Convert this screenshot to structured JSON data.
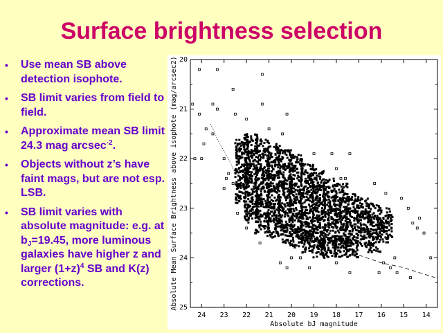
{
  "slide": {
    "title": "Surface brightness selection",
    "bullets": [
      {
        "parts": [
          {
            "t": "Use mean SB above detection isophote."
          }
        ]
      },
      {
        "parts": [
          {
            "t": "SB limit varies from field to field."
          }
        ]
      },
      {
        "parts": [
          {
            "t": "Approximate mean SB limit 24.3 mag arcsec"
          },
          {
            "t": "-2",
            "sup": true
          },
          {
            "t": "."
          }
        ]
      },
      {
        "parts": [
          {
            "t": "Objects without z’s  have faint mags, but  are not esp. LSB."
          }
        ]
      },
      {
        "parts": [
          {
            "t": "SB limit varies with absolute magnitude: e.g. at b"
          },
          {
            "t": "J",
            "sub": true
          },
          {
            "t": "=19.45, more luminous galaxies have higher z and larger (1+z)"
          },
          {
            "t": "4",
            "sup": true
          },
          {
            "t": " SB and K(z) corrections."
          }
        ]
      }
    ],
    "bullet_glyph": "•",
    "colors": {
      "background": "#ffffc0",
      "title": "#cc0066",
      "text": "#6600cc"
    }
  },
  "chart_data": {
    "type": "scatter",
    "xlabel": "Absolute bJ magnitude",
    "ylabel": "Absolute Mean Surface Brightness above isophote (mag/arcsec2)",
    "xlim": [
      24.5,
      13.5
    ],
    "ylim": [
      20,
      25
    ],
    "x_reversed": true,
    "y_reversed": true,
    "xticks": [
      "24",
      "23",
      "22",
      "21",
      "20",
      "19",
      "18",
      "17",
      "16",
      "15",
      "14"
    ],
    "yticks": [
      "20",
      "21",
      "22",
      "23",
      "24",
      "25"
    ],
    "grid": false,
    "marker": "square",
    "core_points": [
      [
        22.2,
        21.8
      ],
      [
        22.2,
        22.1
      ],
      [
        22.2,
        22.4
      ],
      [
        22.2,
        22.7
      ],
      [
        21.8,
        21.7
      ],
      [
        21.8,
        22.0
      ],
      [
        21.8,
        22.3
      ],
      [
        21.8,
        22.6
      ],
      [
        21.8,
        22.9
      ],
      [
        21.8,
        23.1
      ],
      [
        21.3,
        21.8
      ],
      [
        21.3,
        22.1
      ],
      [
        21.3,
        22.4
      ],
      [
        21.3,
        22.7
      ],
      [
        21.3,
        23.0
      ],
      [
        21.3,
        23.3
      ],
      [
        20.8,
        21.9
      ],
      [
        20.8,
        22.2
      ],
      [
        20.8,
        22.5
      ],
      [
        20.8,
        22.8
      ],
      [
        20.8,
        23.1
      ],
      [
        20.8,
        23.4
      ],
      [
        20.3,
        22.0
      ],
      [
        20.3,
        22.3
      ],
      [
        20.3,
        22.6
      ],
      [
        20.3,
        22.9
      ],
      [
        20.3,
        23.2
      ],
      [
        20.3,
        23.5
      ],
      [
        19.8,
        22.1
      ],
      [
        19.8,
        22.4
      ],
      [
        19.8,
        22.7
      ],
      [
        19.8,
        23.0
      ],
      [
        19.8,
        23.3
      ],
      [
        19.8,
        23.6
      ],
      [
        19.3,
        22.3
      ],
      [
        19.3,
        22.6
      ],
      [
        19.3,
        22.9
      ],
      [
        19.3,
        23.2
      ],
      [
        19.3,
        23.5
      ],
      [
        19.3,
        23.7
      ],
      [
        18.8,
        22.4
      ],
      [
        18.8,
        22.7
      ],
      [
        18.8,
        23.0
      ],
      [
        18.8,
        23.3
      ],
      [
        18.8,
        23.6
      ],
      [
        18.8,
        23.8
      ],
      [
        18.3,
        22.6
      ],
      [
        18.3,
        22.9
      ],
      [
        18.3,
        23.2
      ],
      [
        18.3,
        23.5
      ],
      [
        18.3,
        23.8
      ],
      [
        17.8,
        22.7
      ],
      [
        17.8,
        23.0
      ],
      [
        17.8,
        23.3
      ],
      [
        17.8,
        23.6
      ],
      [
        17.8,
        23.8
      ],
      [
        17.3,
        22.9
      ],
      [
        17.3,
        23.2
      ],
      [
        17.3,
        23.5
      ],
      [
        17.3,
        23.8
      ],
      [
        16.8,
        23.0
      ],
      [
        16.8,
        23.3
      ],
      [
        16.8,
        23.6
      ],
      [
        16.3,
        23.1
      ],
      [
        16.3,
        23.4
      ],
      [
        16.3,
        23.7
      ],
      [
        15.8,
        23.2
      ],
      [
        15.8,
        23.5
      ]
    ],
    "points": [
      [
        24.1,
        20.2
      ],
      [
        23.3,
        20.2
      ],
      [
        21.3,
        20.3
      ],
      [
        22.6,
        20.6
      ],
      [
        24.4,
        20.9
      ],
      [
        23.5,
        20.9
      ],
      [
        23.3,
        21.0
      ],
      [
        21.3,
        20.9
      ],
      [
        24.1,
        21.1
      ],
      [
        22.5,
        21.1
      ],
      [
        20.2,
        21.1
      ],
      [
        22.0,
        21.2
      ],
      [
        21.0,
        21.4
      ],
      [
        20.4,
        21.5
      ],
      [
        23.8,
        21.4
      ],
      [
        23.5,
        21.5
      ],
      [
        23.9,
        21.7
      ],
      [
        23.0,
        22.0
      ],
      [
        24.3,
        22.0
      ],
      [
        24.0,
        22.0
      ],
      [
        19.0,
        21.9
      ],
      [
        18.2,
        21.9
      ],
      [
        17.4,
        21.9
      ],
      [
        18.0,
        22.2
      ],
      [
        17.8,
        22.4
      ],
      [
        17.6,
        22.4
      ],
      [
        16.3,
        22.5
      ],
      [
        15.8,
        22.7
      ],
      [
        15.1,
        22.8
      ],
      [
        14.8,
        23.0
      ],
      [
        14.3,
        23.2
      ],
      [
        14.6,
        23.3
      ],
      [
        14.1,
        23.5
      ],
      [
        14.4,
        23.4
      ],
      [
        13.8,
        24.0
      ],
      [
        15.4,
        24.0
      ],
      [
        15.6,
        24.2
      ],
      [
        15.9,
        24.1
      ],
      [
        16.1,
        24.3
      ],
      [
        15.3,
        24.3
      ],
      [
        14.7,
        24.4
      ],
      [
        17.4,
        24.3
      ],
      [
        18.0,
        24.1
      ],
      [
        19.2,
        24.2
      ],
      [
        19.6,
        24.0
      ],
      [
        20.0,
        24.0
      ],
      [
        20.5,
        24.1
      ],
      [
        20.2,
        24.2
      ],
      [
        21.4,
        23.7
      ],
      [
        21.6,
        23.5
      ],
      [
        22.0,
        23.4
      ],
      [
        22.4,
        23.1
      ],
      [
        22.6,
        22.5
      ],
      [
        22.9,
        22.4
      ],
      [
        23.0,
        22.6
      ],
      [
        22.8,
        22.3
      ]
    ],
    "limit_lines": [
      {
        "style": "dotted",
        "points": [
          [
            23.6,
            21.3
          ],
          [
            23.2,
            21.7
          ],
          [
            22.8,
            22.0
          ],
          [
            22.5,
            22.3
          ]
        ]
      },
      {
        "style": "dashed",
        "points": [
          [
            17.3,
            23.9
          ],
          [
            16.0,
            24.1
          ],
          [
            15.0,
            24.2
          ],
          [
            14.3,
            24.3
          ],
          [
            13.6,
            24.4
          ]
        ]
      }
    ]
  }
}
